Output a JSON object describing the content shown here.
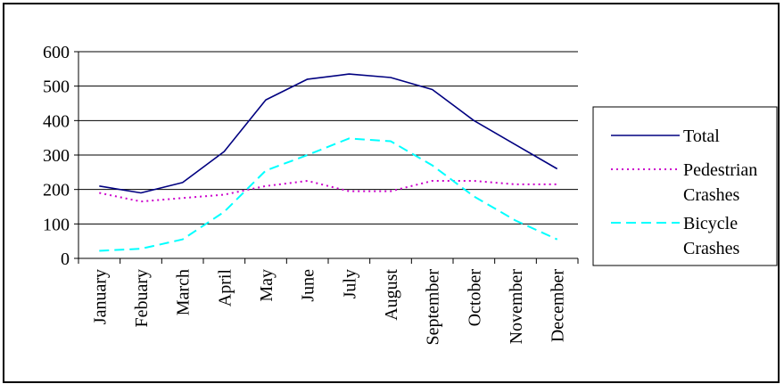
{
  "chart_data": {
    "type": "line",
    "title": "",
    "xlabel": "",
    "ylabel": "",
    "categories": [
      "January",
      "Febuary",
      "March",
      "April",
      "May",
      "June",
      "July",
      "August",
      "September",
      "October",
      "November",
      "December"
    ],
    "ylim": [
      0,
      600
    ],
    "yticks": [
      0,
      100,
      200,
      300,
      400,
      500,
      600
    ],
    "grid": true,
    "legend_position": "right",
    "series": [
      {
        "name": "Total",
        "legend_lines": [
          "Total"
        ],
        "color": "#000080",
        "style": "solid",
        "values": [
          210,
          190,
          220,
          310,
          460,
          520,
          535,
          525,
          490,
          400,
          330,
          260
        ]
      },
      {
        "name": "Pedestrian Crashes",
        "legend_lines": [
          "Pedestrian",
          "Crashes"
        ],
        "color": "#cc00cc",
        "style": "dotted",
        "values": [
          190,
          165,
          175,
          185,
          210,
          225,
          195,
          195,
          225,
          225,
          215,
          215
        ]
      },
      {
        "name": "Bicycle Crashes",
        "legend_lines": [
          "Bicycle",
          "Crashes"
        ],
        "color": "#00ffff",
        "style": "dashed",
        "values": [
          22,
          28,
          55,
          135,
          255,
          300,
          348,
          340,
          270,
          180,
          110,
          55
        ]
      }
    ]
  }
}
